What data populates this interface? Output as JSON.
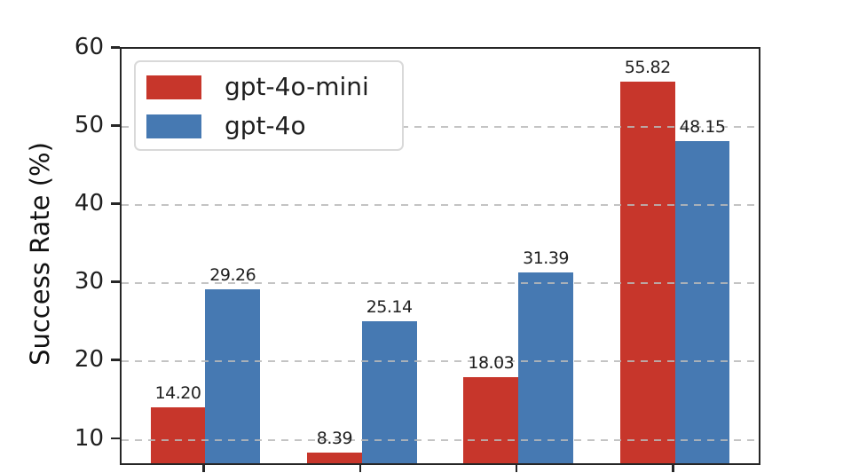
{
  "chart_data": {
    "type": "bar",
    "title": "",
    "ylabel": "Success Rate (%)",
    "xlabel": "",
    "categories": [
      "",
      "",
      "",
      ""
    ],
    "series": [
      {
        "name": "gpt-4o-mini",
        "color": "#c7362b",
        "values": [
          14.2,
          8.39,
          18.03,
          55.82
        ]
      },
      {
        "name": "gpt-4o",
        "color": "#4679b2",
        "values": [
          29.26,
          25.14,
          31.39,
          48.15
        ]
      }
    ],
    "value_labels": {
      "gpt-4o-mini": [
        "14.20",
        "8.39",
        "18.03",
        "55.82"
      ],
      "gpt-4o": [
        "29.26",
        "25.14",
        "31.39",
        "48.15"
      ]
    },
    "ylim": [
      7,
      60
    ],
    "yticks": [
      10,
      20,
      30,
      40,
      50,
      60
    ],
    "bar_width_ratio": 0.35,
    "grid": {
      "axis": "y",
      "style": "dashed",
      "color": "#b9b9b9",
      "drawn_over_bars": true
    },
    "legend_position": "upper-left",
    "spine_color": "#262626",
    "text_color": "#1f1f1f",
    "background": "#ffffff"
  }
}
